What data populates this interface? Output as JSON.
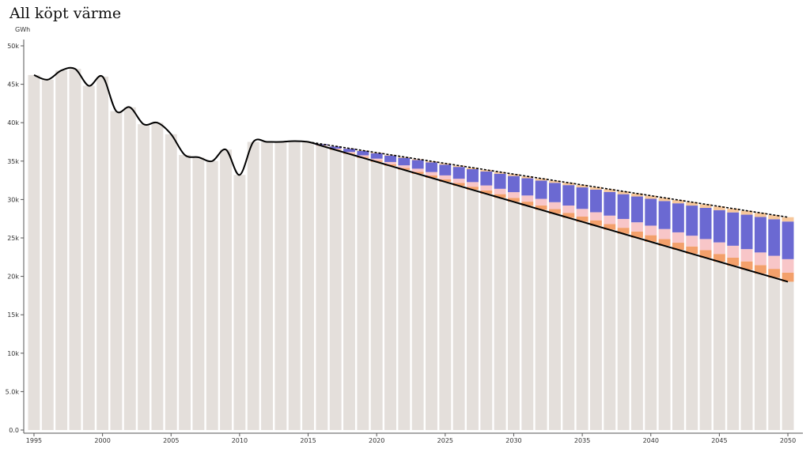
{
  "chart_data": {
    "type": "bar",
    "stacked": true,
    "title": "All köpt värme",
    "y_label": "GWh",
    "x": [
      1995,
      1996,
      1997,
      1998,
      1999,
      2000,
      2001,
      2002,
      2003,
      2004,
      2005,
      2006,
      2007,
      2008,
      2009,
      2010,
      2011,
      2012,
      2013,
      2014,
      2015,
      2016,
      2017,
      2018,
      2019,
      2020,
      2021,
      2022,
      2023,
      2024,
      2025,
      2026,
      2027,
      2028,
      2029,
      2030,
      2031,
      2032,
      2033,
      2034,
      2035,
      2036,
      2037,
      2038,
      2039,
      2040,
      2041,
      2042,
      2043,
      2044,
      2045,
      2046,
      2047,
      2048,
      2049,
      2050
    ],
    "xlim": [
      1994.5,
      2050.5
    ],
    "xticks": [
      1995,
      2000,
      2005,
      2010,
      2015,
      2020,
      2025,
      2030,
      2035,
      2040,
      2045,
      2050
    ],
    "ylim": [
      0,
      50000
    ],
    "yticks": [
      {
        "value": 0,
        "label": "0.0"
      },
      {
        "value": 5000,
        "label": "5.0k"
      },
      {
        "value": 10000,
        "label": "10k"
      },
      {
        "value": 15000,
        "label": "15k"
      },
      {
        "value": 20000,
        "label": "20k"
      },
      {
        "value": 25000,
        "label": "25k"
      },
      {
        "value": 30000,
        "label": "30k"
      },
      {
        "value": 35000,
        "label": "35k"
      },
      {
        "value": 40000,
        "label": "40k"
      },
      {
        "value": 45000,
        "label": "45k"
      },
      {
        "value": 50000,
        "label": "50k"
      }
    ],
    "series": [
      {
        "color": "#e4dfdb",
        "values": [
          46200,
          45600,
          46800,
          47000,
          44800,
          46000,
          41500,
          42000,
          39800,
          40000,
          38500,
          35800,
          35500,
          35000,
          36500,
          33200,
          37500,
          37500,
          37500,
          37600,
          37500,
          36980,
          36460,
          35940,
          35420,
          34900,
          34380,
          33860,
          33340,
          32820,
          32300,
          31780,
          31260,
          30740,
          30220,
          29700,
          29180,
          28660,
          28140,
          27620,
          27100,
          26580,
          26060,
          25540,
          25020,
          24500,
          23980,
          23460,
          22940,
          22420,
          21900,
          21380,
          20860,
          20340,
          19820,
          19300
        ]
      },
      {
        "color": "#f3a06b",
        "values": [
          null,
          null,
          null,
          null,
          null,
          null,
          null,
          null,
          null,
          null,
          null,
          null,
          null,
          null,
          null,
          null,
          null,
          null,
          null,
          null,
          0,
          34,
          68,
          102,
          136,
          170,
          204,
          238,
          272,
          306,
          340,
          374,
          408,
          442,
          476,
          510,
          544,
          578,
          612,
          646,
          680,
          714,
          748,
          782,
          816,
          850,
          884,
          918,
          952,
          986,
          1020,
          1054,
          1088,
          1122,
          1156,
          1190
        ]
      },
      {
        "color": "#f8c6c8",
        "values": [
          null,
          null,
          null,
          null,
          null,
          null,
          null,
          null,
          null,
          null,
          null,
          null,
          null,
          null,
          null,
          null,
          null,
          null,
          null,
          null,
          0,
          50,
          100,
          150,
          200,
          250,
          300,
          350,
          400,
          450,
          500,
          550,
          600,
          650,
          700,
          750,
          800,
          850,
          900,
          950,
          1000,
          1050,
          1100,
          1150,
          1200,
          1250,
          1300,
          1350,
          1400,
          1450,
          1500,
          1550,
          1600,
          1650,
          1700,
          1750
        ]
      },
      {
        "color": "#6b69d2",
        "values": [
          null,
          null,
          null,
          null,
          null,
          null,
          null,
          null,
          null,
          null,
          null,
          null,
          null,
          null,
          null,
          null,
          null,
          null,
          null,
          null,
          0,
          140,
          280,
          420,
          560,
          700,
          840,
          980,
          1120,
          1260,
          1400,
          1540,
          1680,
          1820,
          1960,
          2100,
          2240,
          2380,
          2520,
          2660,
          2800,
          2940,
          3080,
          3220,
          3360,
          3500,
          3640,
          3780,
          3920,
          4060,
          4200,
          4340,
          4480,
          4620,
          4760,
          4900
        ]
      },
      {
        "color": "#f7c79b",
        "values": [
          null,
          null,
          null,
          null,
          null,
          null,
          null,
          null,
          null,
          null,
          null,
          null,
          null,
          null,
          null,
          null,
          null,
          null,
          null,
          null,
          0,
          16,
          32,
          48,
          64,
          80,
          96,
          112,
          128,
          144,
          160,
          176,
          192,
          208,
          224,
          240,
          256,
          272,
          288,
          304,
          320,
          336,
          352,
          368,
          384,
          400,
          416,
          432,
          448,
          464,
          480,
          496,
          512,
          528,
          544,
          560
        ]
      }
    ]
  }
}
